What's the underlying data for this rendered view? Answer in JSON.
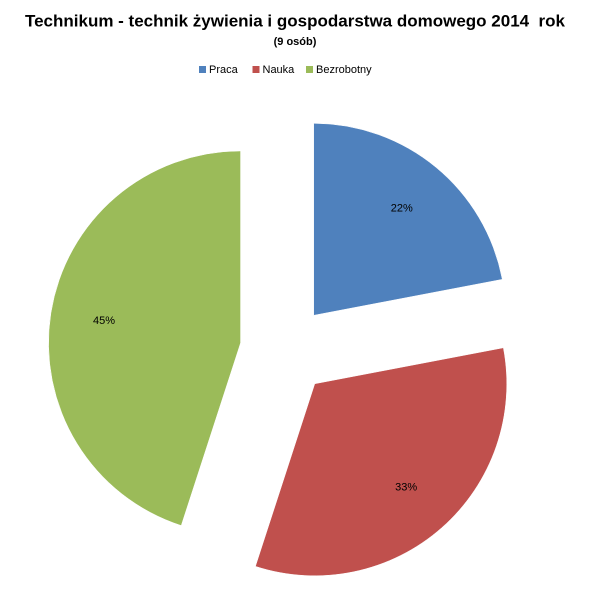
{
  "chart_data": {
    "type": "pie",
    "title": "Technikum - technik żywienia i gospodarstwa domowego 2014  rok",
    "subtitle": "(9 osób)",
    "categories": [
      "Praca",
      "Nauka",
      "Bezrobotny"
    ],
    "values": [
      22,
      33,
      45
    ],
    "value_labels": [
      "22%",
      "33%",
      "45%"
    ],
    "colors": [
      "#4f81bd",
      "#c0504d",
      "#9bbb59"
    ],
    "legend": "top"
  }
}
